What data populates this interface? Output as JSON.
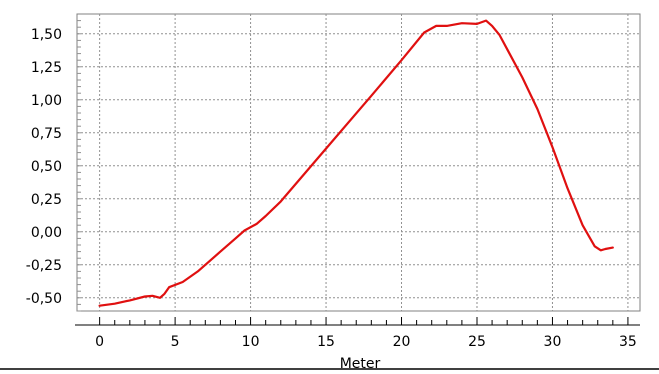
{
  "chart_data": {
    "type": "line",
    "title": "",
    "xlabel": "Meter",
    "ylabel": "",
    "xlim": [
      -1.5,
      35.8
    ],
    "ylim": [
      -0.6,
      1.65
    ],
    "grid": true,
    "line_color": "#e01010",
    "x_ticks": [
      0,
      5,
      10,
      15,
      20,
      25,
      30,
      35
    ],
    "x_tick_labels": [
      "0",
      "5",
      "10",
      "15",
      "20",
      "25",
      "30",
      "35"
    ],
    "y_ticks": [
      -0.5,
      -0.25,
      0,
      0.25,
      0.5,
      0.75,
      1,
      1.25,
      1.5
    ],
    "y_tick_labels": [
      "-0,50",
      "-0,25",
      "0,00",
      "0,25",
      "0,50",
      "0,75",
      "1,00",
      "1,25",
      "1,50"
    ],
    "series": [
      {
        "values": [
          [
            0,
            -0.56
          ],
          [
            1,
            -0.545
          ],
          [
            2,
            -0.52
          ],
          [
            3,
            -0.49
          ],
          [
            3.5,
            -0.485
          ],
          [
            4,
            -0.5
          ],
          [
            4.3,
            -0.47
          ],
          [
            4.6,
            -0.42
          ],
          [
            5.5,
            -0.38
          ],
          [
            6.5,
            -0.3
          ],
          [
            8,
            -0.15
          ],
          [
            9,
            -0.05
          ],
          [
            9.6,
            0.01
          ],
          [
            10.4,
            0.06
          ],
          [
            11,
            0.12
          ],
          [
            12,
            0.23
          ],
          [
            15,
            0.63
          ],
          [
            18,
            1.03
          ],
          [
            20,
            1.3
          ],
          [
            21.5,
            1.51
          ],
          [
            22.3,
            1.56
          ],
          [
            23,
            1.56
          ],
          [
            24,
            1.58
          ],
          [
            25,
            1.575
          ],
          [
            25.6,
            1.6
          ],
          [
            26,
            1.56
          ],
          [
            26.5,
            1.49
          ],
          [
            28,
            1.17
          ],
          [
            29,
            0.93
          ],
          [
            30,
            0.64
          ],
          [
            31,
            0.33
          ],
          [
            32,
            0.05
          ],
          [
            32.8,
            -0.11
          ],
          [
            33.2,
            -0.14
          ],
          [
            33.5,
            -0.13
          ],
          [
            34,
            -0.12
          ]
        ]
      }
    ]
  }
}
